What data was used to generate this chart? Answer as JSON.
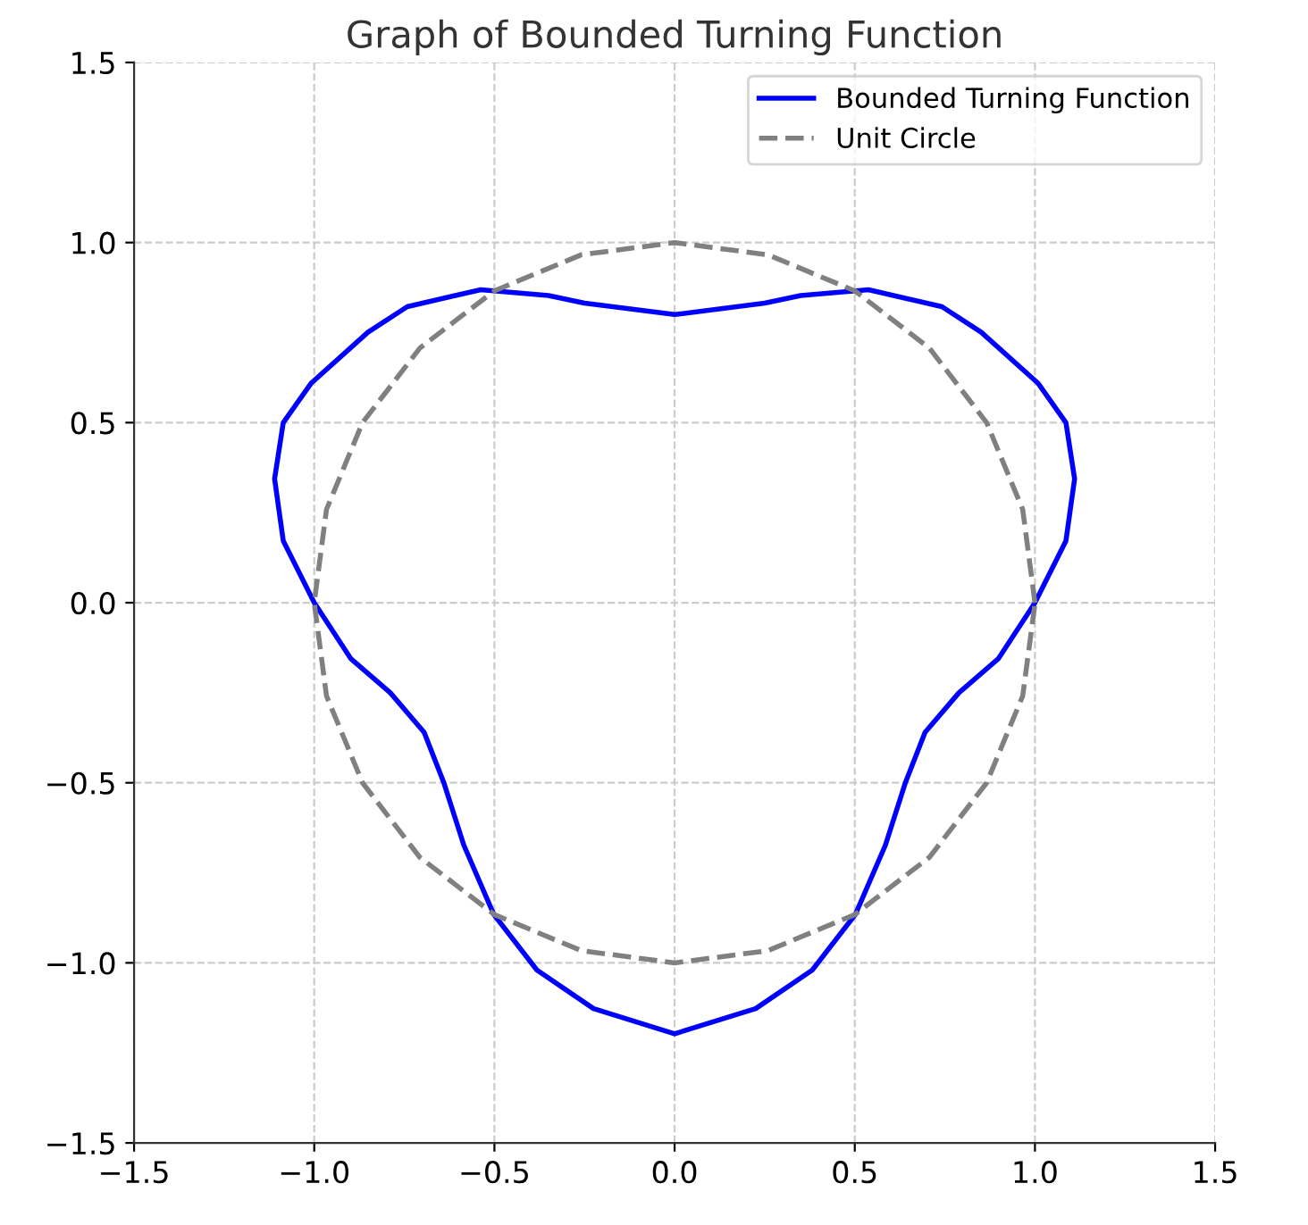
{
  "chart_data": {
    "type": "line",
    "title": "Graph of Bounded Turning Function",
    "series": [
      {
        "name": "Bounded Turning Function",
        "color": "#0000ff",
        "line_style": "solid",
        "x": [
          1.0,
          1.086,
          1.11,
          1.086,
          1.008,
          0.851,
          0.742,
          0.538,
          0.35,
          0.25,
          0.0,
          -0.25,
          -0.35,
          -0.538,
          -0.742,
          -0.851,
          -1.008,
          -1.086,
          -1.11,
          -1.086,
          -1.0,
          -0.898,
          -0.789,
          -0.695,
          -0.64,
          -0.585,
          -0.502,
          -0.382,
          -0.225,
          0.0,
          0.225,
          0.382,
          0.502,
          0.585,
          0.64,
          0.695,
          0.789,
          0.898,
          0.998
        ],
        "values": [
          0.0,
          0.172,
          0.344,
          0.5,
          0.61,
          0.751,
          0.822,
          0.869,
          0.853,
          0.832,
          0.8,
          0.832,
          0.853,
          0.869,
          0.822,
          0.751,
          0.61,
          0.5,
          0.344,
          0.172,
          0.0,
          -0.156,
          -0.25,
          -0.36,
          -0.501,
          -0.673,
          -0.865,
          -1.02,
          -1.127,
          -1.197,
          -1.127,
          -1.02,
          -0.865,
          -0.673,
          -0.501,
          -0.36,
          -0.25,
          -0.156,
          -0.003
        ]
      },
      {
        "name": "Unit Circle",
        "color": "#808080",
        "line_style": "dashed",
        "x": [
          1.0,
          0.966,
          0.866,
          0.707,
          0.5,
          0.259,
          0.0,
          -0.259,
          -0.5,
          -0.707,
          -0.866,
          -0.966,
          -1.0,
          -0.966,
          -0.866,
          -0.707,
          -0.5,
          -0.259,
          0.0,
          0.259,
          0.5,
          0.707,
          0.866,
          0.966,
          1.0
        ],
        "values": [
          0.0,
          0.259,
          0.5,
          0.707,
          0.866,
          0.966,
          1.0,
          0.966,
          0.866,
          0.707,
          0.5,
          0.259,
          0.0,
          -0.259,
          -0.5,
          -0.707,
          -0.866,
          -0.966,
          -1.0,
          -0.966,
          -0.866,
          -0.707,
          -0.5,
          -0.259,
          -0.003
        ]
      }
    ],
    "xlim": [
      -1.5,
      1.5
    ],
    "ylim": [
      -1.5,
      1.5
    ],
    "xticks": [
      {
        "value": -1.5,
        "label": "−1.5"
      },
      {
        "value": -1.0,
        "label": "−1.0"
      },
      {
        "value": -0.5,
        "label": "−0.5"
      },
      {
        "value": 0,
        "label": "0.0"
      },
      {
        "value": 0.5,
        "label": "0.5"
      },
      {
        "value": 1.0,
        "label": "1.0"
      },
      {
        "value": 1.5,
        "label": "1.5"
      }
    ],
    "yticks": [
      {
        "value": -1.5,
        "label": "−1.5"
      },
      {
        "value": -1.0,
        "label": "−1.0"
      },
      {
        "value": -0.5,
        "label": "−0.5"
      },
      {
        "value": 0,
        "label": "0.0"
      },
      {
        "value": 0.5,
        "label": "0.5"
      },
      {
        "value": 1.0,
        "label": "1.0"
      },
      {
        "value": 1.5,
        "label": "1.5"
      }
    ],
    "grid": true,
    "legend": "top right"
  }
}
